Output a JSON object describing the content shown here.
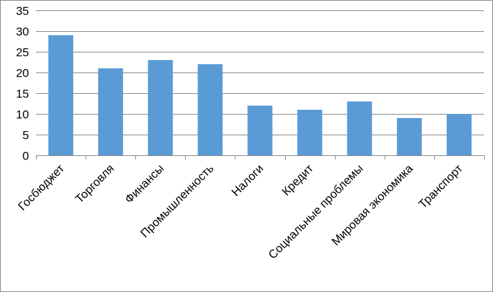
{
  "chart_data": {
    "type": "bar",
    "title": "",
    "xlabel": "",
    "ylabel": "",
    "categories": [
      "Госбюджет",
      "Торговля",
      "Финансы",
      "Промышленность",
      "Налоги",
      "Кредит",
      "Социальные проблемы",
      "Мировая экономика",
      "Транспорт"
    ],
    "values": [
      29,
      21,
      23,
      22,
      12,
      11,
      13,
      9,
      10
    ],
    "ylim": [
      0,
      35
    ],
    "yticks": [
      "0",
      "5",
      "10",
      "15",
      "20",
      "25",
      "30",
      "35"
    ],
    "grid": true,
    "legend": "none",
    "colors": {
      "bar": "#5B9BD5",
      "gridline": "#878787",
      "axis": "#878787"
    }
  }
}
